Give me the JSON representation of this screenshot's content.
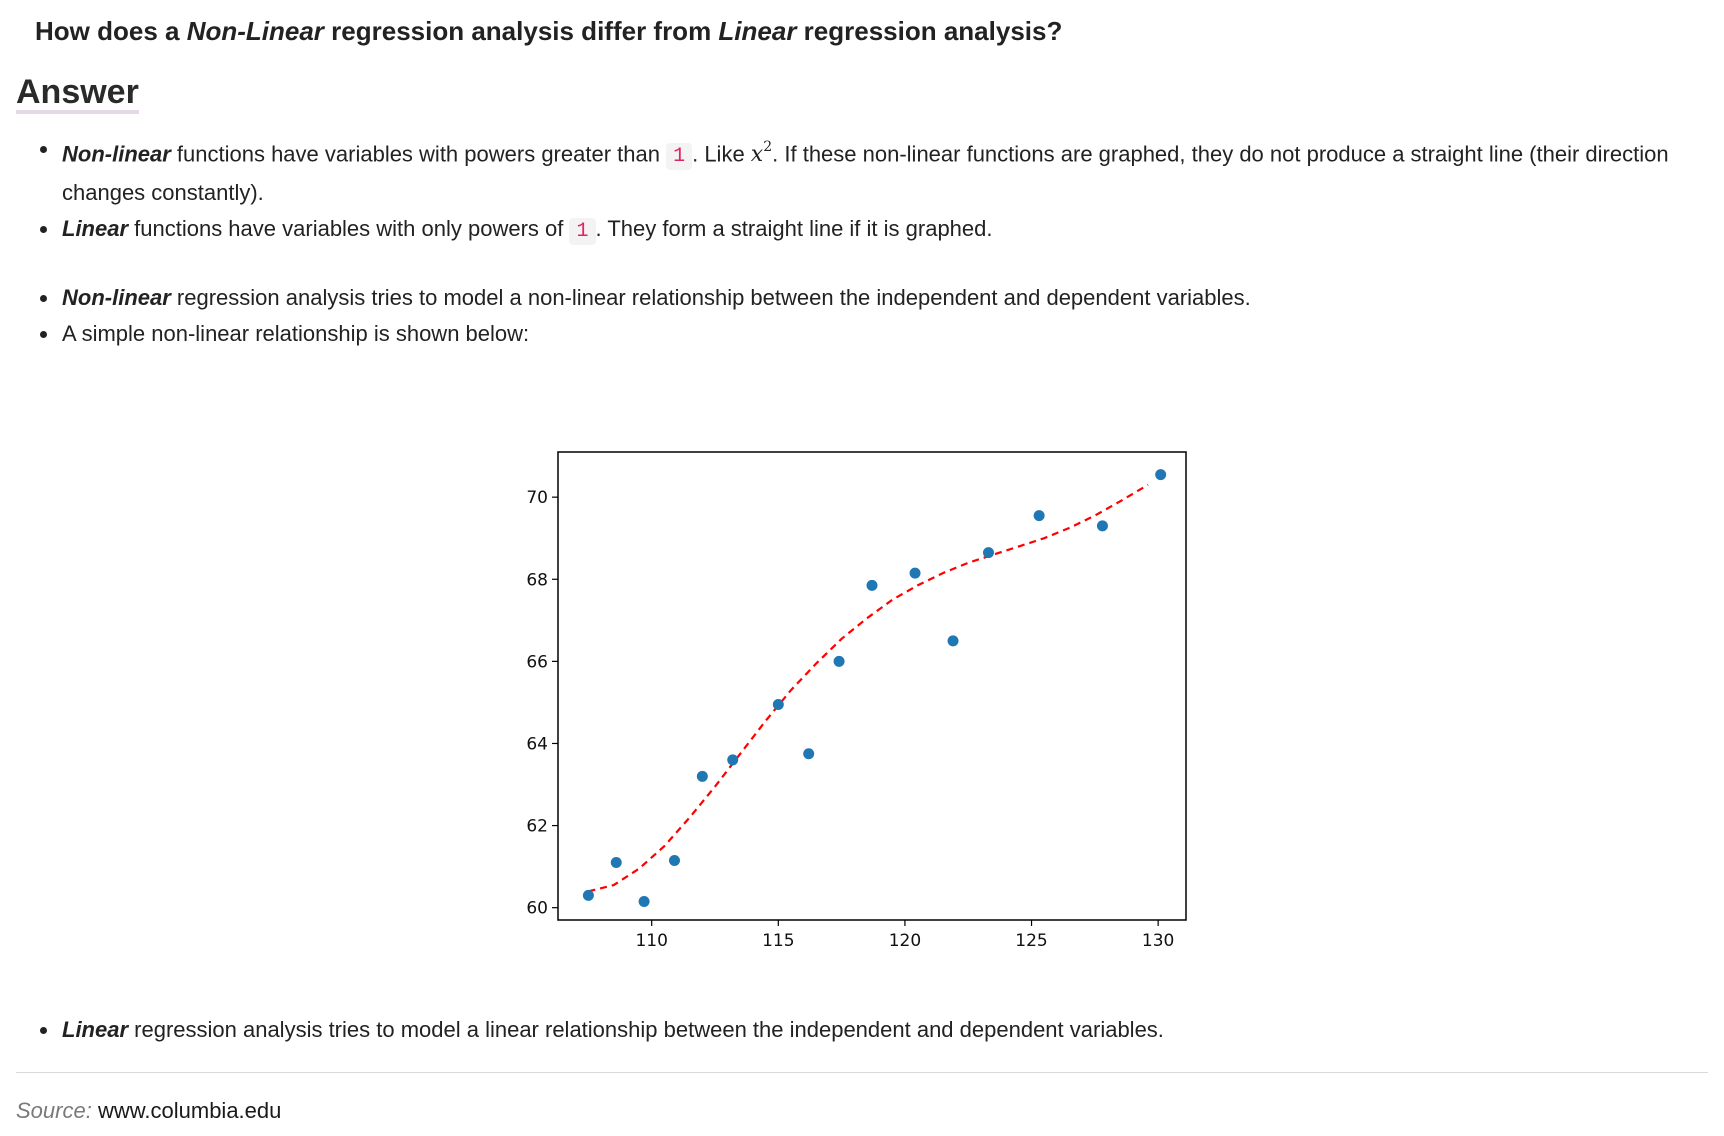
{
  "question": {
    "part1": "How does a ",
    "em1": "Non-Linear",
    "part2": " regression analysis differ from ",
    "em2": "Linear",
    "part3": " regression analysis?"
  },
  "answer_heading": "Answer",
  "bullets_definitions": [
    {
      "keyword": "Non-linear",
      "text_a": " functions have variables with powers greater than ",
      "code": "1",
      "text_b": ". Like ",
      "math_base": "x",
      "math_exp": "2",
      "text_c": ". If these non-linear functions are graphed, they do not produce a straight line (their direction changes constantly)."
    },
    {
      "keyword": "Linear",
      "text_a": " functions have variables with only powers of ",
      "code": "1",
      "text_b": ". They form a straight line if it is graphed."
    }
  ],
  "bullets_nonlinear": [
    {
      "keyword": "Non-linear",
      "text": " regression analysis tries to model a non-linear relationship between the independent and dependent variables."
    },
    {
      "text": "A simple non-linear relationship is shown below:"
    }
  ],
  "bullets_linear": [
    {
      "keyword": "Linear",
      "text": " regression analysis tries to model a linear relationship between the independent and dependent variables."
    }
  ],
  "source": {
    "label": "Source:",
    "link": "www.columbia.edu"
  },
  "chart_data": {
    "type": "scatter",
    "title": "",
    "xlabel": "",
    "ylabel": "",
    "xlim": [
      106.3,
      131.1
    ],
    "ylim": [
      59.7,
      71.1
    ],
    "x_ticks": [
      110,
      115,
      120,
      125,
      130
    ],
    "y_ticks": [
      60,
      62,
      64,
      66,
      68,
      70
    ],
    "grid": false,
    "series": [
      {
        "kind": "points",
        "color": "#1f77b4",
        "x": [
          107.5,
          108.6,
          109.7,
          110.9,
          112.0,
          113.2,
          115.0,
          116.2,
          117.4,
          118.7,
          120.4,
          121.9,
          123.3,
          125.3,
          127.8,
          130.1
        ],
        "y": [
          60.3,
          61.1,
          60.15,
          61.15,
          63.2,
          63.6,
          64.95,
          63.75,
          66.0,
          67.85,
          68.15,
          66.5,
          68.65,
          69.55,
          69.3,
          70.55
        ]
      },
      {
        "kind": "fit-curve",
        "color": "#ff0000",
        "style": "dashed",
        "x": [
          107.5,
          108.5,
          109.5,
          110.5,
          111.5,
          112.5,
          113.5,
          114.5,
          115.5,
          116.5,
          117.5,
          118.5,
          119.5,
          120.5,
          121.5,
          122.5,
          123.5,
          124.5,
          125.5,
          126.5,
          127.5,
          128.5,
          129.6
        ],
        "y": [
          60.4,
          60.55,
          60.95,
          61.5,
          62.2,
          62.95,
          63.75,
          64.55,
          65.3,
          65.95,
          66.55,
          67.05,
          67.5,
          67.85,
          68.15,
          68.4,
          68.6,
          68.8,
          69.0,
          69.25,
          69.55,
          69.9,
          70.3
        ]
      }
    ]
  }
}
